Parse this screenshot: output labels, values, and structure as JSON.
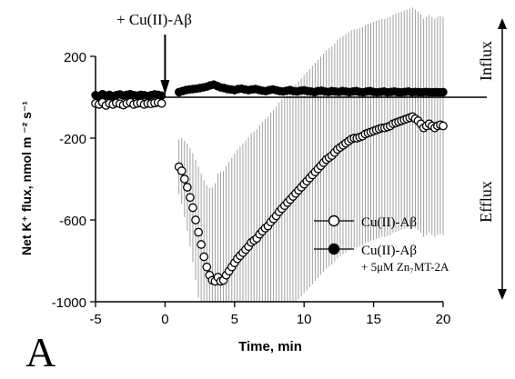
{
  "chart_data": {
    "type": "scatter",
    "panel_label": "A",
    "xlabel": "Time, min",
    "ylabel": "Net K⁺ flux, nmol m ⁻² s⁻¹",
    "xlim": [
      -5,
      20
    ],
    "ylim": [
      -1000,
      200
    ],
    "x_ticks": [
      -5,
      0,
      5,
      10,
      15,
      20
    ],
    "y_ticks": [
      200,
      -200,
      -600,
      -1000
    ],
    "annotation": "+ Cu(II)-Aβ",
    "annotation_x": 0,
    "region_labels": {
      "influx": "Influx",
      "efflux": "Efflux"
    },
    "legend_position": "right",
    "series": [
      {
        "name": "Cu(II)-Aβ",
        "marker": "open-circle",
        "x": [
          -5.0,
          -4.75,
          -4.5,
          -4.25,
          -4.0,
          -3.75,
          -3.5,
          -3.25,
          -3.0,
          -2.75,
          -2.5,
          -2.25,
          -2.0,
          -1.75,
          -1.5,
          -1.25,
          -1.0,
          -0.75,
          -0.5,
          -0.25,
          1.0,
          1.2,
          1.4,
          1.6,
          1.8,
          2.0,
          2.2,
          2.4,
          2.6,
          2.8,
          3.0,
          3.2,
          3.4,
          3.6,
          3.8,
          4.0,
          4.2,
          4.4,
          4.6,
          4.8,
          5.0,
          5.2,
          5.4,
          5.6,
          5.8,
          6.0,
          6.2,
          6.4,
          6.6,
          6.8,
          7.0,
          7.2,
          7.4,
          7.6,
          7.8,
          8.0,
          8.2,
          8.4,
          8.6,
          8.8,
          9.0,
          9.2,
          9.4,
          9.6,
          9.8,
          10.0,
          10.2,
          10.4,
          10.6,
          10.8,
          11.0,
          11.2,
          11.4,
          11.6,
          11.8,
          12.0,
          12.2,
          12.4,
          12.6,
          12.8,
          13.0,
          13.2,
          13.4,
          13.6,
          13.8,
          14.0,
          14.2,
          14.4,
          14.6,
          14.8,
          15.0,
          15.2,
          15.4,
          15.6,
          15.8,
          16.0,
          16.2,
          16.4,
          16.6,
          16.8,
          17.0,
          17.2,
          17.4,
          17.6,
          17.8,
          18.0,
          18.2,
          18.4,
          18.6,
          18.8,
          19.0,
          19.2,
          19.4,
          19.6,
          19.8,
          20.0
        ],
        "y": [
          -30,
          -35,
          -25,
          -40,
          -30,
          -35,
          -28,
          -32,
          -38,
          -30,
          -25,
          -35,
          -30,
          -28,
          -35,
          -30,
          -32,
          -28,
          -25,
          -30,
          -340,
          -360,
          -400,
          -440,
          -490,
          -540,
          -600,
          -660,
          -720,
          -780,
          -830,
          -870,
          -895,
          -900,
          -880,
          -900,
          -895,
          -870,
          -850,
          -830,
          -810,
          -790,
          -775,
          -760,
          -745,
          -730,
          -710,
          -700,
          -690,
          -670,
          -655,
          -640,
          -630,
          -610,
          -595,
          -580,
          -560,
          -545,
          -530,
          -515,
          -500,
          -485,
          -470,
          -455,
          -440,
          -425,
          -410,
          -395,
          -380,
          -365,
          -350,
          -335,
          -320,
          -305,
          -295,
          -285,
          -270,
          -255,
          -245,
          -235,
          -225,
          -215,
          -205,
          -200,
          -200,
          -195,
          -190,
          -180,
          -175,
          -170,
          -165,
          -160,
          -155,
          -150,
          -150,
          -145,
          -140,
          -130,
          -125,
          -120,
          -115,
          -110,
          -105,
          -100,
          -95,
          -105,
          -115,
          -130,
          -150,
          -140,
          -130,
          -140,
          -150,
          -140,
          -135,
          -140
        ]
      },
      {
        "name": "Cu(II)-Aβ + 5μM Zn₇MT-2A",
        "marker": "filled-circle",
        "x": [
          -5.0,
          -4.75,
          -4.5,
          -4.25,
          -4.0,
          -3.75,
          -3.5,
          -3.25,
          -3.0,
          -2.75,
          -2.5,
          -2.25,
          -2.0,
          -1.75,
          -1.5,
          -1.25,
          -1.0,
          -0.75,
          -0.5,
          -0.25,
          1.0,
          1.25,
          1.5,
          1.75,
          2.0,
          2.25,
          2.5,
          2.75,
          3.0,
          3.25,
          3.5,
          3.75,
          4.0,
          4.25,
          4.5,
          4.75,
          5.0,
          5.25,
          5.5,
          5.75,
          6.0,
          6.25,
          6.5,
          6.75,
          7.0,
          7.25,
          7.5,
          7.75,
          8.0,
          8.25,
          8.5,
          8.75,
          9.0,
          9.25,
          9.5,
          9.75,
          10.0,
          10.25,
          10.5,
          10.75,
          11.0,
          11.25,
          11.5,
          11.75,
          12.0,
          12.25,
          12.5,
          12.75,
          13.0,
          13.25,
          13.5,
          13.75,
          14.0,
          14.25,
          14.5,
          14.75,
          15.0,
          15.25,
          15.5,
          15.75,
          16.0,
          16.25,
          16.5,
          16.75,
          17.0,
          17.25,
          17.5,
          17.75,
          18.0,
          18.25,
          18.5,
          18.75,
          19.0,
          19.25,
          19.5,
          19.75,
          20.0
        ],
        "y": [
          10,
          5,
          15,
          8,
          12,
          6,
          10,
          14,
          8,
          12,
          15,
          10,
          8,
          12,
          10,
          6,
          10,
          14,
          12,
          8,
          25,
          30,
          35,
          38,
          40,
          42,
          45,
          48,
          52,
          58,
          62,
          55,
          48,
          45,
          40,
          38,
          35,
          40,
          42,
          38,
          35,
          38,
          40,
          36,
          32,
          30,
          35,
          38,
          34,
          30,
          28,
          32,
          35,
          30,
          28,
          32,
          34,
          30,
          28,
          25,
          30,
          32,
          28,
          26,
          30,
          28,
          26,
          30,
          28,
          25,
          28,
          30,
          26,
          24,
          28,
          30,
          26,
          24,
          26,
          28,
          24,
          26,
          28,
          25,
          24,
          26,
          28,
          24,
          26,
          25,
          24,
          26,
          25,
          24,
          25,
          24,
          25
        ]
      }
    ]
  }
}
